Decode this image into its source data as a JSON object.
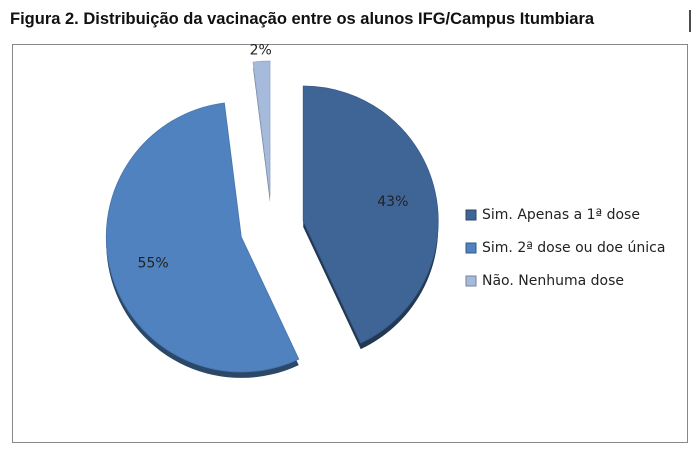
{
  "chart_data": {
    "type": "pie",
    "title": "Figura 2. Distribuição da vacinação entre os alunos IFG/Campus Itumbiara",
    "categories": [
      "Sim. Apenas a 1ª dose",
      "Sim. 2ª dose ou doe única",
      "Não. Nenhuma dose"
    ],
    "values": [
      43,
      55,
      2
    ],
    "value_labels": [
      "43%",
      "55%",
      "2%"
    ],
    "colors": [
      "#3f6597",
      "#4f82bf",
      "#a6bbdc"
    ],
    "legend": "right"
  }
}
